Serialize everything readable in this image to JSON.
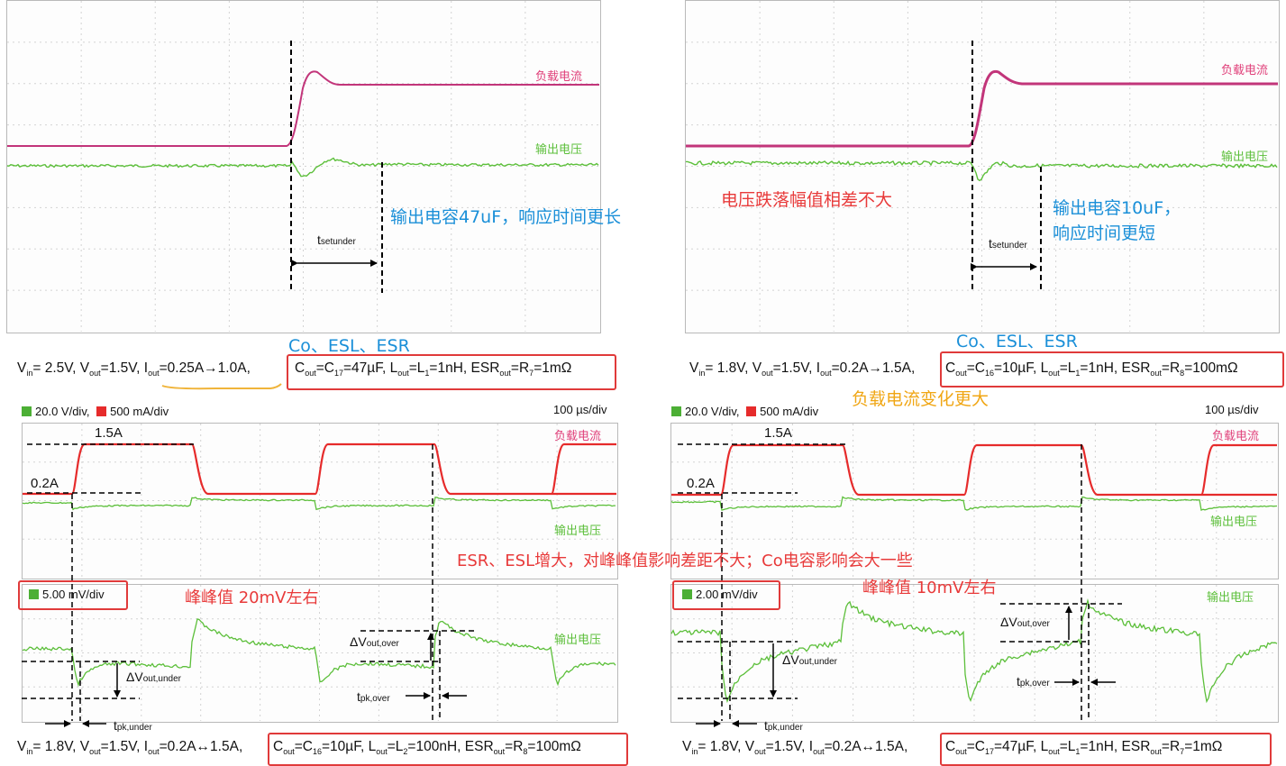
{
  "top_left": {
    "load_label": "负载电流",
    "vout_label": "输出电压",
    "annotation": "输出电容47uF，响应时间更长",
    "t_main": "t",
    "t_sub": "setunder"
  },
  "top_right": {
    "load_label": "负载电流",
    "vout_label": "输出电压",
    "annotation_red": "电压跌落幅值相差不大",
    "annotation_line1": "输出电容10uF，",
    "annotation_line2": "响应时间更短",
    "t_main": "t",
    "t_sub": "setunder"
  },
  "notes": {
    "co_esl_esr_left": "Co、ESL、ESR",
    "co_esl_esr_right": "Co、ESL、ESR",
    "load_change": "负载电流变化更大",
    "compare": "ESR、ESL增大，对峰峰值影响差距不大；Co电容影响会大一些",
    "pp_left": "峰峰值 20mV左右",
    "pp_right": "峰峰值 10mV左右"
  },
  "params": {
    "row1_left": {
      "a": "V",
      "a_sub": "in",
      "a_val": "= 2.5V, ",
      "b": "V",
      "b_sub": "out",
      "b_val": "=1.5V, ",
      "c": "I",
      "c_sub": "out",
      "c_val": "=0.25A→1.0A,",
      "d": "C",
      "d_sub": "out",
      "d_mid": "=C",
      "d_sub2": "17",
      "d_val": "=47µF, ",
      "e": "L",
      "e_sub": "out",
      "e_mid": "=L",
      "e_sub2": "1",
      "e_val": "=1nH, ",
      "f": "ESR",
      "f_sub": "out",
      "f_mid": "=R",
      "f_sub2": "7",
      "f_val": "=1mΩ"
    },
    "row1_right": {
      "a": "V",
      "a_sub": "in",
      "a_val": "= 1.8V, ",
      "b": "V",
      "b_sub": "out",
      "b_val": "=1.5V, ",
      "c": "I",
      "c_sub": "out",
      "c_val": "=0.2A→1.5A,",
      "d": "C",
      "d_sub": "out",
      "d_mid": "=C",
      "d_sub2": "16",
      "d_val": "=10µF, ",
      "e": "L",
      "e_sub": "out",
      "e_mid": "=L",
      "e_sub2": "1",
      "e_val": "=1nH, ",
      "f": "ESR",
      "f_sub": "out",
      "f_mid": "=R",
      "f_sub2": "8",
      "f_val": "=100mΩ"
    },
    "row2_left": {
      "a": "V",
      "a_sub": "in",
      "a_val": "= 1.8V, ",
      "b": "V",
      "b_sub": "out",
      "b_val": "=1.5V, ",
      "c": "I",
      "c_sub": "out",
      "c_val": "=0.2A↔1.5A,",
      "d": "C",
      "d_sub": "out",
      "d_mid": "=C",
      "d_sub2": "16",
      "d_val": "=10µF, ",
      "e": "L",
      "e_sub": "out",
      "e_mid": "=L",
      "e_sub2": "2",
      "e_val": "=100nH, ",
      "f": "ESR",
      "f_sub": "out",
      "f_mid": "=R",
      "f_sub2": "8",
      "f_val": "=100mΩ"
    },
    "row2_right": {
      "a": "V",
      "a_sub": "in",
      "a_val": "= 1.8V, ",
      "b": "V",
      "b_sub": "out",
      "b_val": "=1.5V, ",
      "c": "I",
      "c_sub": "out",
      "c_val": "=0.2A↔1.5A,",
      "d": "C",
      "d_sub": "out",
      "d_mid": "=C",
      "d_sub2": "17",
      "d_val": "=47µF, ",
      "e": "L",
      "e_sub": "out",
      "e_mid": "=L",
      "e_sub2": "1",
      "e_val": "=1nH, ",
      "f": "ESR",
      "f_sub": "out",
      "f_mid": "=R",
      "f_sub2": "7",
      "f_val": "=1mΩ"
    }
  },
  "bottom_left": {
    "legend_v": "20.0 V/div,",
    "legend_i": "500 mA/div",
    "timebase": "100 µs/div",
    "i_high": "1.5A",
    "i_low": "0.2A",
    "load_label": "负载电流",
    "vout_label_top": "输出电压",
    "zoom_scale": "5.00 mV/div",
    "vout_label_bottom": "输出电压",
    "dv_under": "ΔV",
    "dv_under_sub": "out,under",
    "dv_over": "ΔV",
    "dv_over_sub": "out,over",
    "t_under": "t",
    "t_under_sub": "pk,under",
    "t_over": "t",
    "t_over_sub": "pk,over"
  },
  "bottom_right": {
    "legend_v": "20.0 V/div,",
    "legend_i": "500 mA/div",
    "timebase": "100 µs/div",
    "i_high": "1.5A",
    "i_low": "0.2A",
    "load_label": "负载电流",
    "vout_label_top": "输出电压",
    "zoom_scale": "2.00 mV/div",
    "vout_label_bottom": "输出电压",
    "dv_under": "ΔV",
    "dv_under_sub": "out,under",
    "dv_over": "ΔV",
    "dv_over_sub": "out,over",
    "t_under": "t",
    "t_under_sub": "pk,under",
    "t_over": "t",
    "t_over_sub": "pk,over"
  },
  "colors": {
    "magenta_trace": "#c2357a",
    "green_trace": "#5cbf3a",
    "red_trace": "#e62b2b",
    "annotation_blue": "#1a8fd8",
    "annotation_red": "#e83a3a",
    "annotation_orange": "#f0a614"
  }
}
